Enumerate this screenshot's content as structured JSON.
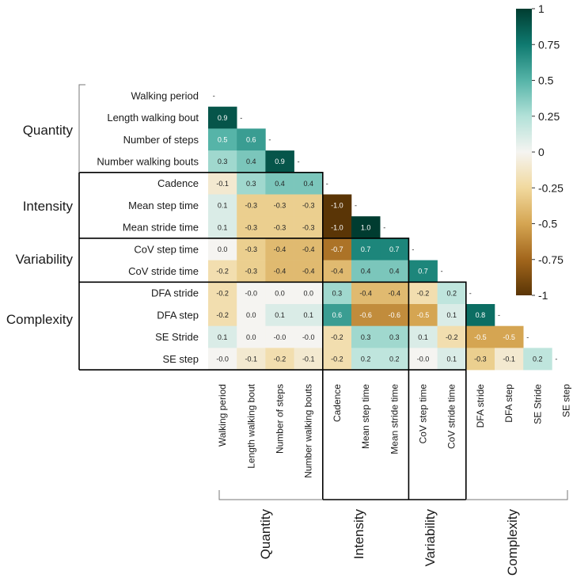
{
  "chart_data": {
    "type": "heatmap",
    "title": "",
    "variables": [
      "Walking period",
      "Length walking bout",
      "Number of steps",
      "Number walking bouts",
      "Cadence",
      "Mean step time",
      "Mean stride time",
      "CoV step time",
      "CoV stride time",
      "DFA stride",
      "DFA step",
      "SE Stride",
      "SE step"
    ],
    "groups": [
      {
        "name": "Quantity",
        "start": 0,
        "end": 3
      },
      {
        "name": "Intensity",
        "start": 4,
        "end": 6
      },
      {
        "name": "Variability",
        "start": 7,
        "end": 8
      },
      {
        "name": "Complexity",
        "start": 9,
        "end": 12
      }
    ],
    "matrix": [
      [],
      [
        0.9
      ],
      [
        0.5,
        0.6
      ],
      [
        0.3,
        0.4,
        0.9
      ],
      [
        -0.1,
        0.3,
        0.4,
        0.4
      ],
      [
        0.1,
        -0.3,
        -0.3,
        -0.3,
        -1.0
      ],
      [
        0.1,
        -0.3,
        -0.3,
        -0.3,
        -1.0,
        1.0
      ],
      [
        0.0,
        -0.3,
        -0.4,
        -0.4,
        -0.7,
        0.7,
        0.7
      ],
      [
        -0.2,
        -0.3,
        -0.4,
        -0.4,
        -0.4,
        0.4,
        0.4,
        0.7
      ],
      [
        -0.2,
        -0.0,
        0.0,
        0.0,
        0.3,
        -0.4,
        -0.4,
        -0.2,
        0.2
      ],
      [
        -0.2,
        0.0,
        0.1,
        0.1,
        0.6,
        -0.6,
        -0.6,
        -0.5,
        0.1,
        0.8
      ],
      [
        0.1,
        0.0,
        -0.0,
        -0.0,
        -0.2,
        0.3,
        0.3,
        0.1,
        -0.2,
        -0.5,
        -0.5
      ],
      [
        -0.0,
        -0.1,
        -0.2,
        -0.1,
        -0.2,
        0.2,
        0.2,
        -0.0,
        0.1,
        -0.3,
        -0.1,
        0.2
      ]
    ],
    "value_labels": [
      [],
      [
        "0.9"
      ],
      [
        "0.5",
        "0.6"
      ],
      [
        "0.3",
        "0.4",
        "0.9"
      ],
      [
        "-0.1",
        "0.3",
        "0.4",
        "0.4"
      ],
      [
        "0.1",
        "-0.3",
        "-0.3",
        "-0.3",
        "-1.0"
      ],
      [
        "0.1",
        "-0.3",
        "-0.3",
        "-0.3",
        "-1.0",
        "1.0"
      ],
      [
        "0.0",
        "-0.3",
        "-0.4",
        "-0.4",
        "-0.7",
        "0.7",
        "0.7"
      ],
      [
        "-0.2",
        "-0.3",
        "-0.4",
        "-0.4",
        "-0.4",
        "0.4",
        "0.4",
        "0.7"
      ],
      [
        "-0.2",
        "-0.0",
        "0.0",
        "0.0",
        "0.3",
        "-0.4",
        "-0.4",
        "-0.2",
        "0.2"
      ],
      [
        "-0.2",
        "0.0",
        "0.1",
        "0.1",
        "0.6",
        "-0.6",
        "-0.6",
        "-0.5",
        "0.1",
        "0.8"
      ],
      [
        "0.1",
        "0.0",
        "-0.0",
        "-0.0",
        "-0.2",
        "0.3",
        "0.3",
        "0.1",
        "-0.2",
        "-0.5",
        "-0.5"
      ],
      [
        "-0.0",
        "-0.1",
        "-0.2",
        "-0.1",
        "-0.2",
        "0.2",
        "0.2",
        "-0.0",
        "0.1",
        "-0.3",
        "-0.1",
        "0.2"
      ]
    ],
    "colorbar": {
      "ticks": [
        1,
        0.75,
        0.5,
        0.25,
        0,
        -0.25,
        -0.5,
        -0.75,
        -1
      ],
      "tick_labels": [
        "1",
        "0.75",
        "0.5",
        "0.25",
        "0",
        "-0.25",
        "-0.5",
        "-0.75",
        "-1"
      ],
      "range": [
        -1,
        1
      ],
      "colormap": "BrBG",
      "placement": "top-right"
    },
    "colors": {
      "negative": "#5a3506",
      "neutral": "#f5f4f1",
      "positive": "#003c30",
      "frame": "#000000",
      "brace": "#777777"
    }
  }
}
